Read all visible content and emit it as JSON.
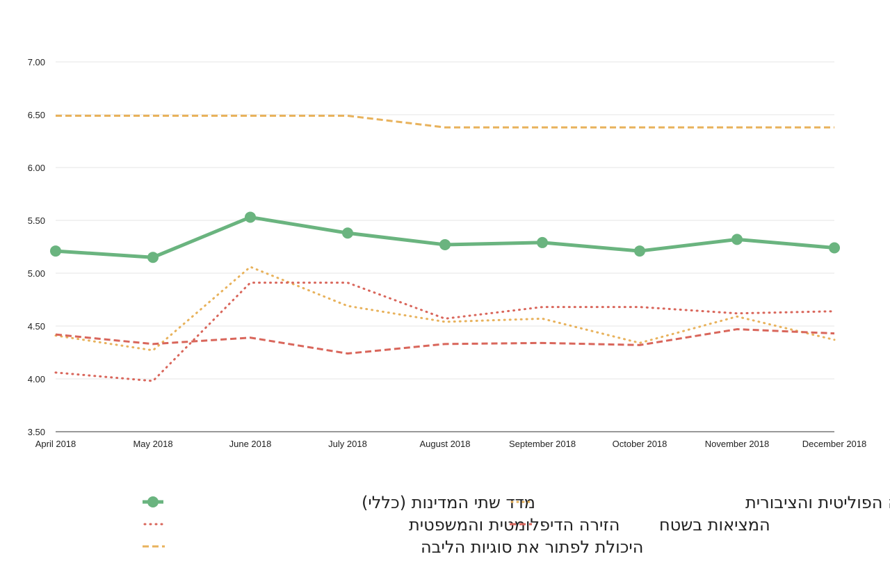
{
  "chart_data": {
    "type": "line",
    "title": "",
    "xlabel": "",
    "ylabel": "",
    "ylim": [
      3.5,
      7.0
    ],
    "y_ticks": [
      "3.50",
      "4.00",
      "4.50",
      "5.00",
      "5.50",
      "6.00",
      "6.50",
      "7.00"
    ],
    "grid": true,
    "legend_position": "bottom",
    "categories": [
      "April 2018",
      "May 2018",
      "June 2018",
      "July 2018",
      "August 2018",
      "September 2018",
      "October 2018",
      "November 2018",
      "December 2018"
    ],
    "series": [
      {
        "name": "מדד שתי המדינות (כללי)",
        "color": "#6ab47f",
        "style": "solid-markers",
        "values": [
          5.21,
          5.15,
          5.53,
          5.38,
          5.27,
          5.29,
          5.21,
          5.32,
          5.24
        ]
      },
      {
        "name": "הזירה הפוליטית והציבורית",
        "color": "#e8b25c",
        "style": "dotted",
        "values": [
          4.41,
          4.27,
          5.06,
          4.69,
          4.54,
          4.57,
          4.34,
          4.59,
          4.37
        ]
      },
      {
        "name": "הזירה הדיפלומטית והמשפטית",
        "color": "#d9665b",
        "style": "dotted",
        "values": [
          4.06,
          3.98,
          4.91,
          4.91,
          4.57,
          4.68,
          4.68,
          4.62,
          4.64
        ]
      },
      {
        "name": "המציאות בשטח",
        "color": "#d9665b",
        "style": "dashed",
        "values": [
          4.42,
          4.33,
          4.39,
          4.24,
          4.33,
          4.34,
          4.32,
          4.47,
          4.43
        ]
      },
      {
        "name": "היכולת לפתור את סוגיות הליבה",
        "color": "#e8b25c",
        "style": "dashed",
        "values": [
          6.49,
          6.49,
          6.49,
          6.49,
          6.38,
          6.38,
          6.38,
          6.38,
          6.38
        ]
      }
    ]
  }
}
